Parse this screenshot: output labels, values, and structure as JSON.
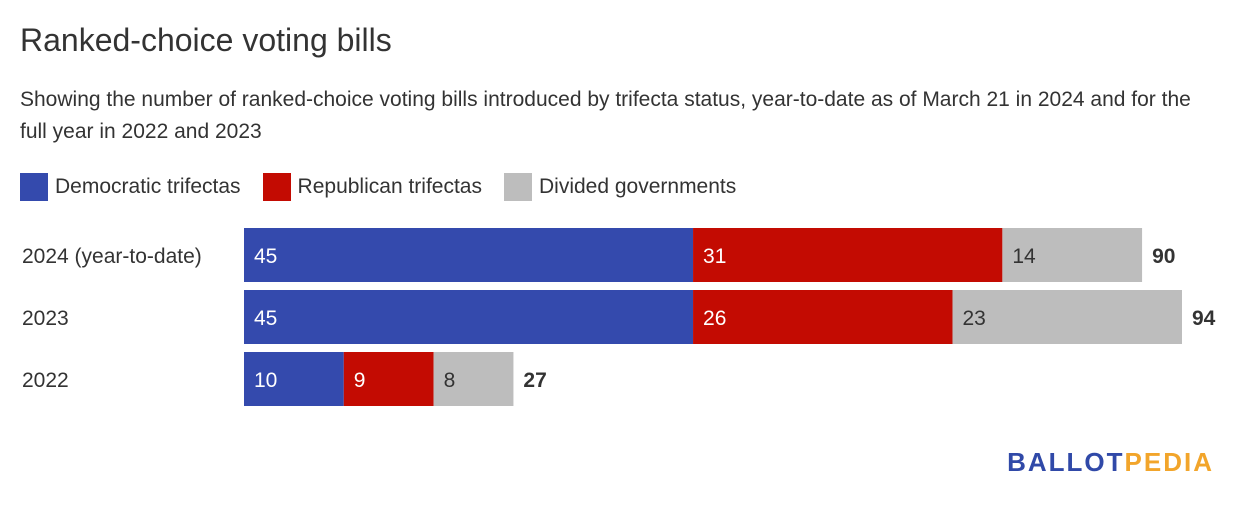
{
  "header": {
    "title": "Ranked-choice voting bills",
    "subtitle": "Showing the number of ranked-choice voting bills introduced by trifecta status, year-to-date as of March 21 in 2024 and for the full year in 2022 and 2023"
  },
  "logo": {
    "part1": "BALLOT",
    "part2": "PEDIA",
    "color1": "#3049a8",
    "color2": "#f2a52b"
  },
  "chart_data": {
    "type": "bar",
    "orientation": "horizontal",
    "stacked": true,
    "title": "Ranked-choice voting bills",
    "subtitle": "Showing the number of ranked-choice voting bills introduced by trifecta status, year-to-date as of March 21 in 2024 and for the full year in 2022 and 2023",
    "categories": [
      "2024 (year-to-date)",
      "2023",
      "2022"
    ],
    "series": [
      {
        "name": "Democratic trifectas",
        "color": "#344aad",
        "values": [
          45,
          45,
          10
        ]
      },
      {
        "name": "Republican trifectas",
        "color": "#c30b02",
        "values": [
          31,
          26,
          9
        ]
      },
      {
        "name": "Divided governments",
        "color": "#bdbdbd",
        "values": [
          14,
          23,
          8
        ]
      }
    ],
    "totals": [
      90,
      94,
      27
    ],
    "xlim": [
      0,
      94
    ],
    "grid": false,
    "legend_position": "top-left"
  }
}
